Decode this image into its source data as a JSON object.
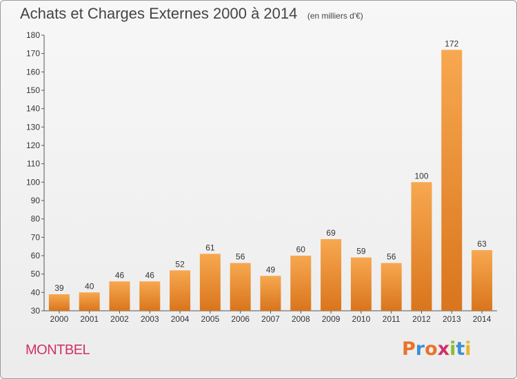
{
  "header": {
    "title": "Achats et Charges Externes 2000 à 2014",
    "subtitle": "(en milliers d'€)"
  },
  "footer": {
    "commune": "MONTBEL",
    "brand": "Proxiti"
  },
  "colors": {
    "bar_light": "#f7a850",
    "bar_dark": "#d9751c",
    "commune": "#d0306a",
    "brand_letters": [
      "#e8732a",
      "#3b8fd6",
      "#e8732a",
      "#d0306a",
      "#8bbd2a",
      "#3b8fd6",
      "#e8b52a"
    ]
  },
  "chart_data": {
    "type": "bar",
    "title": "Achats et Charges Externes 2000 à 2014",
    "subtitle": "(en milliers d'€)",
    "xlabel": "",
    "ylabel": "",
    "categories": [
      "2000",
      "2001",
      "2002",
      "2003",
      "2004",
      "2005",
      "2006",
      "2007",
      "2008",
      "2009",
      "2010",
      "2011",
      "2012",
      "2013",
      "2014"
    ],
    "values": [
      39,
      40,
      46,
      46,
      52,
      61,
      56,
      49,
      60,
      69,
      59,
      56,
      100,
      172,
      63
    ],
    "ylim": [
      30,
      180
    ],
    "yticks": [
      30,
      40,
      50,
      60,
      70,
      80,
      90,
      100,
      110,
      120,
      130,
      140,
      150,
      160,
      170,
      180
    ],
    "grid": false,
    "data_labels": true
  }
}
